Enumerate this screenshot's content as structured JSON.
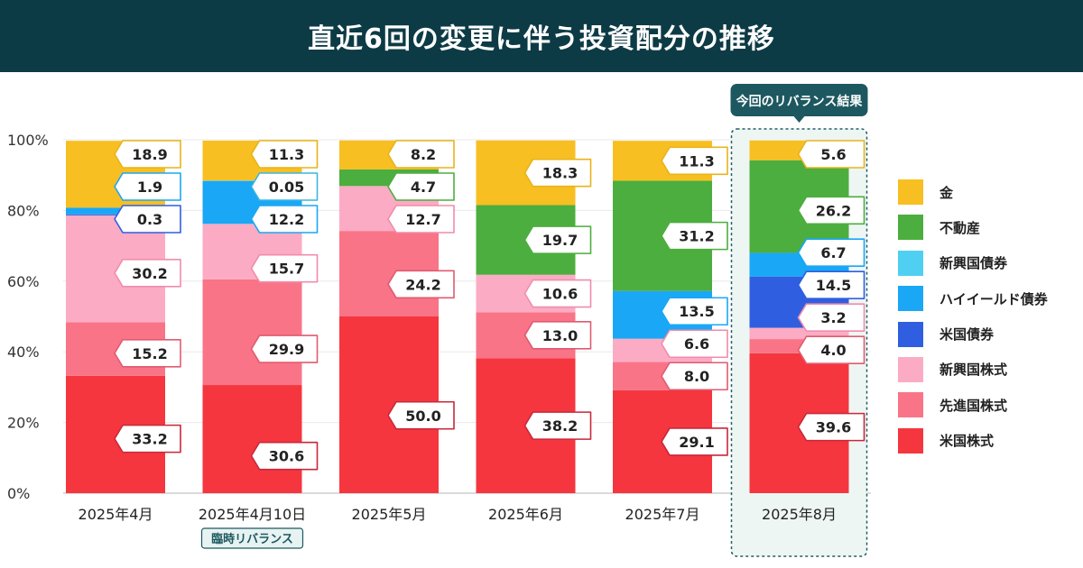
{
  "header": {
    "title": "直近6回の変更に伴う投資配分の推移"
  },
  "chart_data": {
    "type": "stacked-bar",
    "title": "直近6回の変更に伴う投資配分の推移",
    "ylim": [
      0,
      100
    ],
    "yticks": [
      "0%",
      "20%",
      "40%",
      "60%",
      "80%",
      "100%"
    ],
    "categories": [
      "2025年4月",
      "2025年4月10日",
      "2025年5月",
      "2025年6月",
      "2025年7月",
      "2025年8月"
    ],
    "series": [
      {
        "name": "米国株式",
        "color": "#f5363f",
        "labelColor": "#c8283a",
        "values": [
          33.2,
          30.6,
          50.0,
          38.2,
          29.1,
          39.6
        ]
      },
      {
        "name": "先進国株式",
        "color": "#f97487",
        "labelColor": "#e05b70",
        "values": [
          15.2,
          29.9,
          24.2,
          13.0,
          8.0,
          4.0
        ]
      },
      {
        "name": "新興国株式",
        "color": "#fcabc4",
        "labelColor": "#f08cab",
        "values": [
          30.2,
          15.7,
          12.7,
          10.6,
          6.6,
          3.2
        ]
      },
      {
        "name": "米国債券",
        "color": "#2f5fe0",
        "labelColor": "#2f5fe0",
        "values": [
          0.3,
          0,
          0,
          0,
          0,
          14.5
        ]
      },
      {
        "name": "ハイイールド債券",
        "color": "#1aa7f5",
        "labelColor": "#1aa7f5",
        "values": [
          1.9,
          12.2,
          0,
          0,
          13.5,
          6.7
        ]
      },
      {
        "name": "新興国債券",
        "color": "#4fd0f2",
        "labelColor": "#3bb6e0",
        "values": [
          0,
          0.05,
          0,
          0,
          0,
          0
        ]
      },
      {
        "name": "不動産",
        "color": "#4cae3e",
        "labelColor": "#4cae3e",
        "values": [
          0,
          0,
          4.7,
          19.7,
          31.2,
          26.2
        ]
      },
      {
        "name": "金",
        "color": "#f8bf22",
        "labelColor": "#e8b31a",
        "values": [
          18.9,
          11.3,
          8.2,
          18.3,
          11.3,
          5.6
        ]
      }
    ],
    "labels": [
      [
        {
          "series": "米国株式",
          "text": "33.2"
        },
        {
          "series": "先進国株式",
          "text": "15.2"
        },
        {
          "series": "新興国株式",
          "text": "30.2"
        },
        {
          "series": "米国債券",
          "text": "0.3"
        },
        {
          "series": "ハイイールド債券",
          "text": "1.9"
        },
        {
          "series": "金",
          "text": "18.9"
        }
      ],
      [
        {
          "series": "米国株式",
          "text": "30.6"
        },
        {
          "series": "先進国株式",
          "text": "29.9"
        },
        {
          "series": "新興国株式",
          "text": "15.7"
        },
        {
          "series": "新興国債券",
          "text": "0.05"
        },
        {
          "series": "ハイイールド債券",
          "text": "12.2"
        },
        {
          "series": "金",
          "text": "11.3"
        }
      ],
      [
        {
          "series": "米国株式",
          "text": "50.0"
        },
        {
          "series": "先進国株式",
          "text": "24.2"
        },
        {
          "series": "新興国株式",
          "text": "12.7"
        },
        {
          "series": "不動産",
          "text": "4.7"
        },
        {
          "series": "金",
          "text": "8.2"
        }
      ],
      [
        {
          "series": "米国株式",
          "text": "38.2"
        },
        {
          "series": "先進国株式",
          "text": "13.0"
        },
        {
          "series": "新興国株式",
          "text": "10.6"
        },
        {
          "series": "不動産",
          "text": "19.7"
        },
        {
          "series": "金",
          "text": "18.3"
        }
      ],
      [
        {
          "series": "米国株式",
          "text": "29.1"
        },
        {
          "series": "先進国株式",
          "text": "8.0"
        },
        {
          "series": "新興国株式",
          "text": "6.6"
        },
        {
          "series": "ハイイールド債券",
          "text": "13.5"
        },
        {
          "series": "不動産",
          "text": "31.2"
        },
        {
          "series": "金",
          "text": "11.3"
        }
      ],
      [
        {
          "series": "米国株式",
          "text": "39.6"
        },
        {
          "series": "先進国株式",
          "text": "4.0"
        },
        {
          "series": "新興国株式",
          "text": "3.2"
        },
        {
          "series": "米国債券",
          "text": "14.5"
        },
        {
          "series": "ハイイールド債券",
          "text": "6.7"
        },
        {
          "series": "不動産",
          "text": "26.2"
        },
        {
          "series": "金",
          "text": "5.6"
        }
      ]
    ],
    "annotations": {
      "tag_text": "臨時リバランス",
      "tag_category_index": 1,
      "highlight_text": "今回のリバランス結果",
      "highlight_category_index": 5
    },
    "legend": [
      {
        "name": "金",
        "color": "#f8bf22"
      },
      {
        "name": "不動産",
        "color": "#4cae3e"
      },
      {
        "name": "新興国債券",
        "color": "#4fd0f2"
      },
      {
        "name": "ハイイールド債券",
        "color": "#1aa7f5"
      },
      {
        "name": "米国債券",
        "color": "#2f5fe0"
      },
      {
        "name": "新興国株式",
        "color": "#fcabc4"
      },
      {
        "name": "先進国株式",
        "color": "#f97487"
      },
      {
        "name": "米国株式",
        "color": "#f5363f"
      }
    ]
  }
}
